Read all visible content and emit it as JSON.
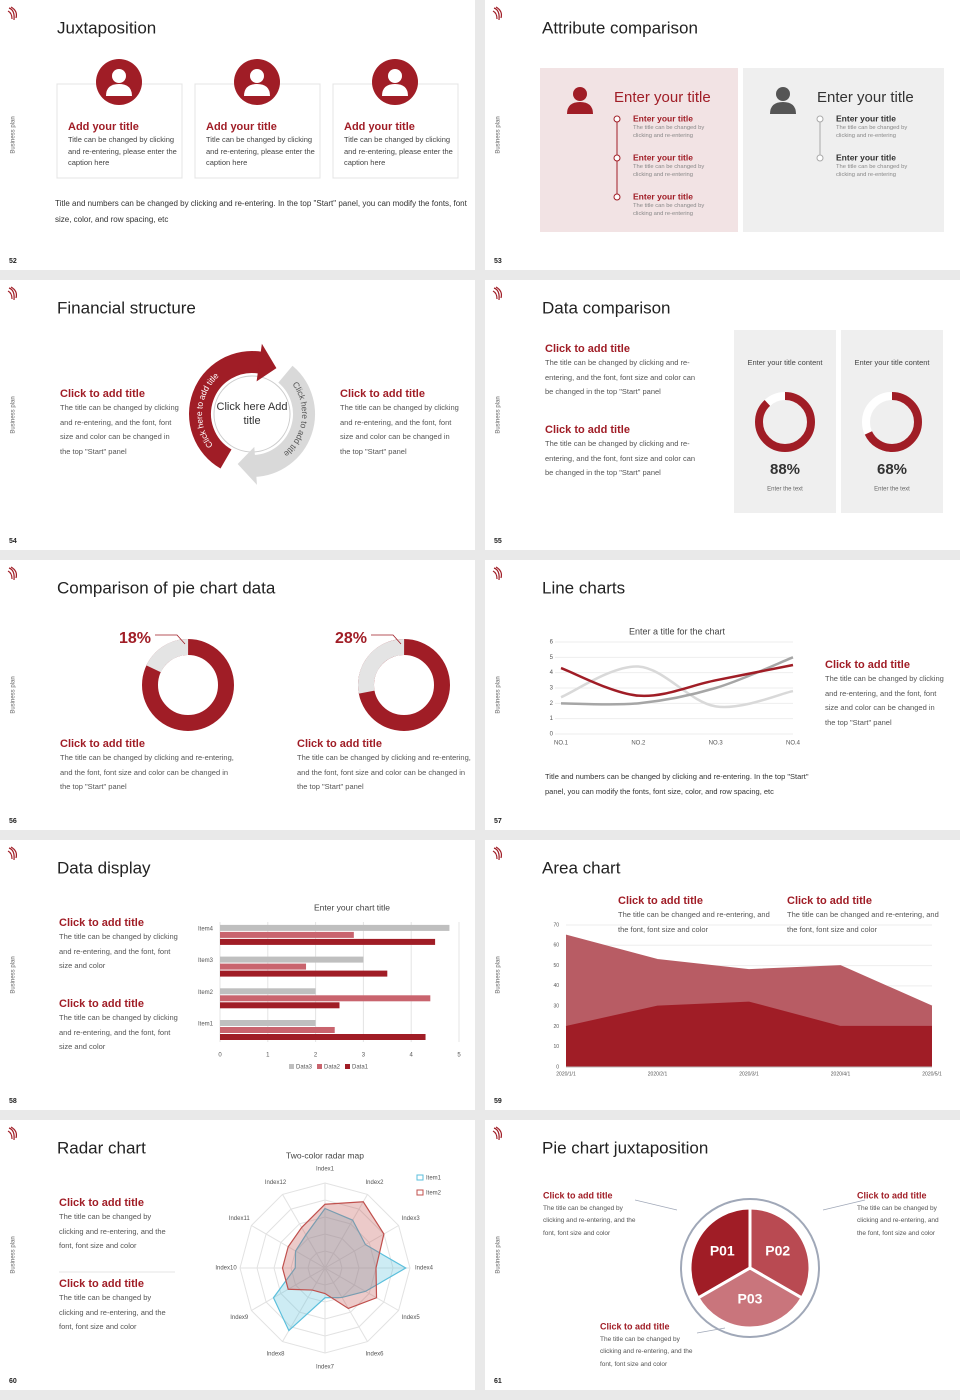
{
  "brand": "Business plan",
  "slides": [
    {
      "number": "52",
      "title": "Juxtaposition",
      "cards": [
        {
          "title": "Add your title",
          "text": "Title can be changed by clicking and re-entering, please enter the caption here"
        },
        {
          "title": "Add your title",
          "text": "Title can be changed by clicking and re-entering, please enter the caption here"
        },
        {
          "title": "Add your title",
          "text": "Title can be changed by clicking and re-entering, please enter the caption here"
        }
      ],
      "note": "Title and numbers can be changed by clicking and re-entering. In the top \"Start\" panel, you can modify the fonts, font size, color, and row spacing, etc"
    },
    {
      "number": "53",
      "title": "Attribute comparison",
      "panels": [
        {
          "heading": "Enter your title",
          "items": [
            {
              "title": "Enter your title",
              "text": "The title can be changed by clicking and re-entering"
            },
            {
              "title": "Enter your title",
              "text": "The title can be changed by clicking and re-entering"
            },
            {
              "title": "Enter your title",
              "text": "The title can be changed by clicking and re-entering"
            }
          ]
        },
        {
          "heading": "Enter your title",
          "items": [
            {
              "title": "Enter your title",
              "text": "The title can be changed by clicking and re-entering"
            },
            {
              "title": "Enter your title",
              "text": "The title can be changed by clicking and re-entering"
            }
          ]
        }
      ]
    },
    {
      "number": "54",
      "title": "Financial structure",
      "blocks": [
        {
          "title": "Click to add title",
          "text": "The title can be changed by clicking and re-entering, and the font, font size and color can be changed in the top \"Start\" panel"
        },
        {
          "title": "Click to add title",
          "text": "The title can be changed by clicking and re-entering, and the font, font size and color can be changed in the top \"Start\" panel"
        }
      ],
      "center": "Click here Add title",
      "arc_labels": [
        "Click here to add title",
        "Click here to add title"
      ]
    },
    {
      "number": "55",
      "title": "Data comparison",
      "blocks": [
        {
          "title": "Click to add title",
          "text": "The title can be changed by clicking and re-entering, and the font, font size and color can be changed in the top \"Start\" panel"
        },
        {
          "title": "Click to add title",
          "text": "The title can be changed by clicking and re-entering, and the font, font size and color can be changed in the top \"Start\" panel"
        }
      ],
      "donuts": [
        {
          "heading": "Enter your title content",
          "value": 88,
          "value_label": "88%",
          "caption": "Enter the text"
        },
        {
          "heading": "Enter your title content",
          "value": 68,
          "value_label": "68%",
          "caption": "Enter the text"
        }
      ]
    },
    {
      "number": "56",
      "title": "Comparison of pie chart data",
      "pies": [
        {
          "value": 18,
          "value_label": "18%",
          "title": "Click to add title",
          "text": "The title can be changed by clicking and re-entering, and the font, font size and color can be changed in the top \"Start\" panel"
        },
        {
          "value": 28,
          "value_label": "28%",
          "title": "Click to add title",
          "text": "The title can be changed by clicking and re-entering, and the font, font size and color can be changed in the top \"Start\" panel"
        }
      ]
    },
    {
      "number": "57",
      "title": "Line charts",
      "chart": {
        "type": "line",
        "title": "Enter a title for the chart",
        "categories": [
          "NO.1",
          "NO.2",
          "NO.3",
          "NO.4"
        ],
        "ylim": [
          0,
          6
        ],
        "yticks": [
          0,
          1,
          2,
          3,
          4,
          5,
          6
        ],
        "series": [
          {
            "color": "#d9d9d9",
            "values": [
              2.4,
              4.4,
              1.8,
              2.8
            ]
          },
          {
            "color": "#a6a6a6",
            "values": [
              2,
              2,
              3,
              5
            ]
          },
          {
            "color": "#a01d26",
            "values": [
              4.3,
              2.5,
              3.5,
              4.5
            ]
          }
        ]
      },
      "blocks": [
        {
          "title": "Click to add title",
          "text": "The title can be changed by clicking and re-entering, and the font, font size and color can be changed in the top \"Start\" panel"
        }
      ],
      "note": "Title and numbers can be changed by clicking and re-entering. In the top \"Start\" panel, you can modify the fonts, font size, color, and row spacing, etc"
    },
    {
      "number": "58",
      "title": "Data display",
      "blocks": [
        {
          "title": "Click to add title",
          "text": "The title can be changed by clicking and re-entering, and the font, font size and color"
        },
        {
          "title": "Click to add title",
          "text": "The title can be changed by clicking and re-entering, and the font, font size and color"
        }
      ],
      "chart": {
        "type": "bar",
        "horizontal": true,
        "title": "Enter your chart title",
        "categories": [
          "Item1",
          "Item2",
          "Item3",
          "Item4"
        ],
        "xlim": [
          0,
          5
        ],
        "xticks": [
          0,
          1,
          2,
          3,
          4,
          5
        ],
        "grid": true,
        "series": [
          {
            "name": "Data3",
            "color": "#bfbfbf",
            "values": [
              2,
              2,
              3,
              4.8
            ]
          },
          {
            "name": "Data2",
            "color": "#c9646e",
            "values": [
              2.4,
              4.4,
              1.8,
              2.8
            ]
          },
          {
            "name": "Data1",
            "color": "#a01d26",
            "values": [
              4.3,
              2.5,
              3.5,
              4.5
            ]
          }
        ]
      }
    },
    {
      "number": "59",
      "title": "Area chart",
      "blocks": [
        {
          "title": "Click to add title",
          "text": "The title can be changed and re-entering, and the font, font size and color"
        },
        {
          "title": "Click to add title",
          "text": "The title can be changed and re-entering, and the font, font size and color"
        }
      ],
      "chart": {
        "type": "area",
        "categories": [
          "2020/1/1",
          "2020/2/1",
          "2020/3/1",
          "2020/4/1",
          "2020/5/1"
        ],
        "ylim": [
          0,
          70
        ],
        "yticks": [
          0,
          10,
          20,
          30,
          40,
          50,
          60,
          70
        ],
        "series": [
          {
            "color": "#b85c64",
            "values": [
              65,
              53,
              48,
              50,
              30
            ]
          },
          {
            "color": "#a01d26",
            "values": [
              20,
              30,
              32,
              20,
              20
            ]
          }
        ]
      }
    },
    {
      "number": "60",
      "title": "Radar chart",
      "blocks": [
        {
          "title": "Click to add title",
          "text": "The title can be changed by clicking and re-entering, and the font, font size and color"
        },
        {
          "title": "Click to add title",
          "text": "The title can be changed by clicking and re-entering, and the font, font size and color"
        }
      ],
      "chart": {
        "type": "radar",
        "title": "Two-color radar map",
        "categories": [
          "Index1",
          "Index2",
          "Index3",
          "Index4",
          "Index5",
          "Index6",
          "Index7",
          "Index8",
          "Index9",
          "Index10",
          "Index11",
          "Index12"
        ],
        "rlim": [
          0,
          10
        ],
        "series": [
          {
            "name": "Item1",
            "color": "#5bbfdc",
            "values": [
              7,
              6.5,
              5.5,
              9.5,
              5.5,
              4,
              3.5,
              8.5,
              7,
              3.5,
              4,
              4.5
            ]
          },
          {
            "name": "Item2",
            "color": "#c0504d",
            "values": [
              7.5,
              9,
              8,
              6,
              7,
              5.5,
              3,
              3,
              5,
              5,
              5,
              5.5
            ]
          }
        ]
      }
    },
    {
      "number": "61",
      "title": "Pie chart juxtaposition",
      "segments": [
        "P01",
        "P02",
        "P03"
      ],
      "blocks": [
        {
          "title": "Click to add title",
          "text": "The title can be changed by clicking and re-entering, and the font, font size and color"
        },
        {
          "title": "Click to add title",
          "text": "The title can be changed by clicking and re-entering, and the font, font size and color"
        },
        {
          "title": "Click to add title",
          "text": "The title can be changed by clicking and re-entering, and the font, font size and color"
        }
      ]
    }
  ]
}
